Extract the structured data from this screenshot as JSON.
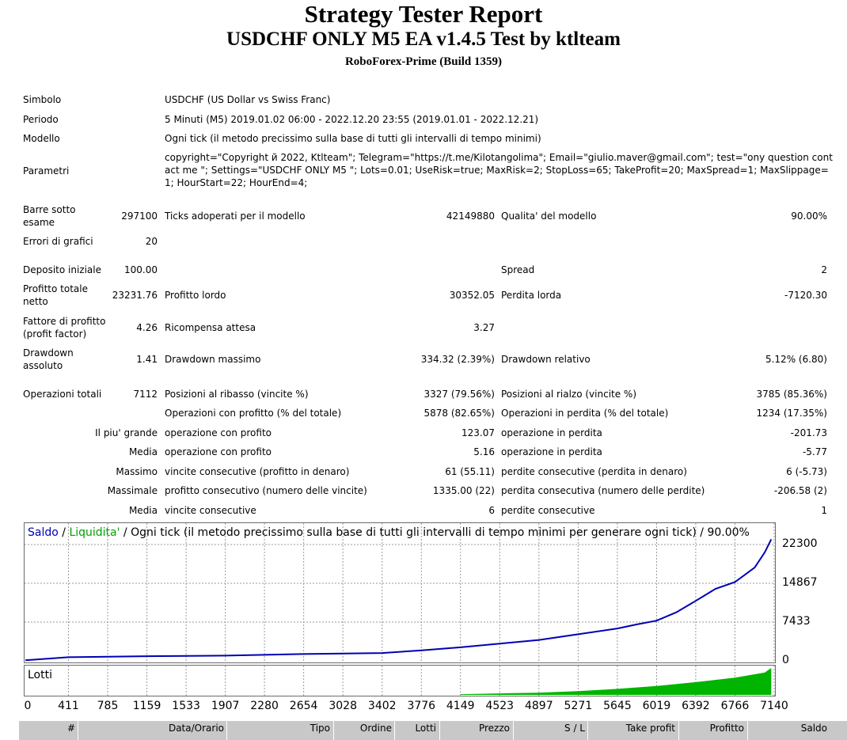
{
  "header": {
    "title": "Strategy Tester Report",
    "subtitle": "USDCHF ONLY M5 EA v1.4.5 Test by ktlteam",
    "broker": "RoboForex-Prime (Build 1359)"
  },
  "info": {
    "simbolo_label": "Simbolo",
    "simbolo_value": "USDCHF (US Dollar vs Swiss Franc)",
    "periodo_label": "Periodo",
    "periodo_value": "5 Minuti (M5) 2019.01.02 06:00 - 2022.12.20 23:55 (2019.01.01 - 2022.12.21)",
    "modello_label": "Modello",
    "modello_value": "Ogni tick (il metodo precissimo sulla base di tutti gli intervalli di tempo minimi)",
    "parametri_label": "Parametri",
    "parametri_value": "copyright=\"Copyright й 2022, Ktlteam\"; Telegram=\"https://t.me/Kilotangolima\"; Email=\"giulio.maver@gmail.com\"; test=\"ony question contact me \"; Settings=\"USDCHF ONLY M5 \"; Lots=0.01; UseRisk=true; MaxRisk=2; StopLoss=65; TakeProfit=20; MaxSpread=1; MaxSlippage=1; HourStart=22; HourEnd=4;"
  },
  "stats": {
    "barre_label_1": "Barre sotto",
    "barre_label_2": "esame",
    "barre_value": "297100",
    "ticks_label": "Ticks adoperati per il modello",
    "ticks_value": "42149880",
    "qualita_label": "Qualita' del modello",
    "qualita_value": "90.00%",
    "errori_label": "Errori di grafici",
    "errori_value": "20",
    "deposito_label": "Deposito iniziale",
    "deposito_value": "100.00",
    "spread_label": "Spread",
    "spread_value": "2",
    "profitto_netto_label_1": "Profitto totale",
    "profitto_netto_label_2": "netto",
    "profitto_netto_value": "23231.76",
    "profitto_lordo_label": "Profitto lordo",
    "profitto_lordo_value": "30352.05",
    "perdita_lorda_label": "Perdita lorda",
    "perdita_lorda_value": "-7120.30",
    "fattore_label_1": "Fattore di profitto",
    "fattore_label_2": "(profit factor)",
    "fattore_value": "4.26",
    "ricompensa_label": "Ricompensa attesa",
    "ricompensa_value": "3.27",
    "dd_ass_label_1": "Drawdown",
    "dd_ass_label_2": "assoluto",
    "dd_ass_value": "1.41",
    "dd_max_label": "Drawdown massimo",
    "dd_max_value": "334.32 (2.39%)",
    "dd_rel_label": "Drawdown relativo",
    "dd_rel_value": "5.12% (6.80)",
    "oper_tot_label": "Operazioni totali",
    "oper_tot_value": "7112",
    "ribasso_label": "Posizioni al ribasso (vincite %)",
    "ribasso_value": "3327 (79.56%)",
    "rialzo_label": "Posizioni al rialzo (vincite %)",
    "rialzo_value": "3785 (85.36%)",
    "oper_prof_label": "Operazioni con profitto (% del totale)",
    "oper_prof_value": "5878 (82.65%)",
    "oper_perd_label": "Operazioni in perdita (% del totale)",
    "oper_perd_value": "1234 (17.35%)",
    "grande_label": "Il piu' grande",
    "grande_prof_label": "operazione con profito",
    "grande_prof_value": "123.07",
    "grande_perd_label": "operazione in perdita",
    "grande_perd_value": "-201.73",
    "media_label": "Media",
    "media_prof_label": "operazione con profito",
    "media_prof_value": "5.16",
    "media_perd_label": "operazione in perdita",
    "media_perd_value": "-5.77",
    "massimo_label": "Massimo",
    "massimo_vinc_label": "vincite consecutive (profitto in denaro)",
    "massimo_vinc_value": "61 (55.11)",
    "massimo_perd_label": "perdite consecutive (perdita in denaro)",
    "massimo_perd_value": "6 (-5.73)",
    "massimale_label": "Massimale",
    "massimale_prof_label": "profitto consecutivo (numero delle vincite)",
    "massimale_prof_value": "1335.00 (22)",
    "massimale_perd_label": "perdita consecutiva (numero delle perdite)",
    "massimale_perd_value": "-206.58 (2)",
    "media2_label": "Media",
    "media2_vinc_label": "vincite consecutive",
    "media2_vinc_value": "6",
    "media2_perd_label": "perdite consecutive",
    "media2_perd_value": "1"
  },
  "chart_legend": {
    "saldo": "Saldo",
    "sep1": " / ",
    "liquidita": "Liquidita'",
    "rest": " / Ogni tick (il metodo precissimo sulla base di tutti gli intervalli di tempo minimi per generare ogni tick) / 90.00%",
    "lotti": "Lotti"
  },
  "colors": {
    "saldo": "#0000b4",
    "liquidita": "#00a000",
    "lots": "#00b400",
    "grid": "#9a9a9a"
  },
  "chart_data": {
    "type": "line",
    "series": [
      {
        "name": "Saldo",
        "x": [
          0,
          411,
          1159,
          1907,
          2654,
          3402,
          3776,
          4149,
          4523,
          4897,
          5271,
          5645,
          5833,
          6019,
          6206,
          6392,
          6580,
          6766,
          6954,
          7050,
          7112
        ],
        "y": [
          100,
          700,
          900,
          1000,
          1300,
          1500,
          2000,
          2600,
          3300,
          4000,
          5100,
          6200,
          7000,
          7700,
          9300,
          11500,
          13800,
          15100,
          17900,
          20800,
          23300
        ]
      }
    ],
    "lots": {
      "name": "Lotti",
      "x": [
        4149,
        4523,
        4897,
        5271,
        5645,
        6019,
        6392,
        6766,
        7050,
        7112
      ],
      "y": [
        0.01,
        0.02,
        0.03,
        0.05,
        0.08,
        0.12,
        0.17,
        0.23,
        0.3,
        0.36
      ]
    },
    "y_ticks": [
      "22300",
      "14867",
      "7433",
      "0"
    ],
    "y_tick_values": [
      22300,
      14867,
      7433,
      0
    ],
    "x_ticks": [
      "0",
      "411",
      "785",
      "1159",
      "1533",
      "1907",
      "2280",
      "2654",
      "3028",
      "3402",
      "3776",
      "4149",
      "4523",
      "4897",
      "5271",
      "5645",
      "6019",
      "6392",
      "6766",
      "7140"
    ],
    "x_tick_values": [
      0,
      411,
      785,
      1159,
      1533,
      1907,
      2280,
      2654,
      3028,
      3402,
      3776,
      4149,
      4523,
      4897,
      5271,
      5645,
      6019,
      6392,
      6766,
      7140
    ],
    "xlim": [
      0,
      7140
    ],
    "ylim": [
      0,
      23300
    ]
  },
  "deals_header": [
    "#",
    "Data/Orario",
    "Tipo",
    "Ordine",
    "Lotti",
    "Prezzo",
    "S / L",
    "Take profit",
    "Profitto",
    "Saldo"
  ]
}
